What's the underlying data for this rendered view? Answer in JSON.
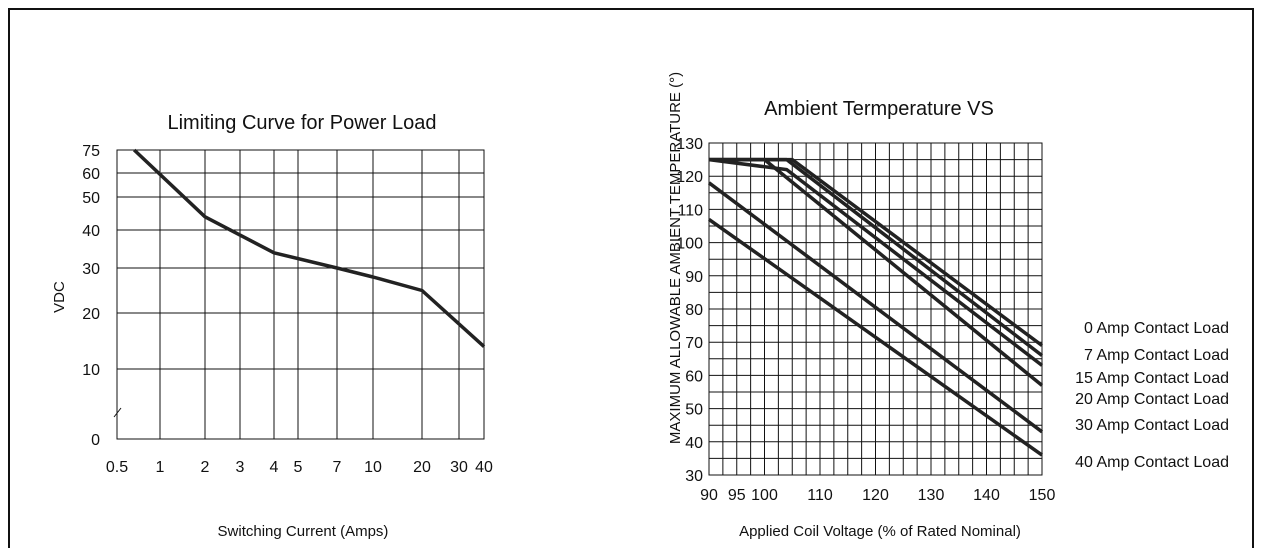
{
  "chart_data": [
    {
      "type": "line",
      "title": "Limiting Curve for Power Load",
      "xlabel": "Switching Current (Amps)",
      "ylabel": "VDC",
      "x_ticks": [
        "0.5",
        "1",
        "2",
        "3",
        "4",
        "5",
        "7",
        "10",
        "20",
        "30",
        "40"
      ],
      "y_ticks": [
        "0",
        "10",
        "20",
        "30",
        "40",
        "50",
        "60",
        "75"
      ],
      "grid": true,
      "series": [
        {
          "x": [
            0.7,
            2,
            4,
            7,
            10,
            20,
            40
          ],
          "y": [
            75,
            44,
            34,
            30,
            28,
            25,
            14
          ]
        }
      ]
    },
    {
      "type": "line",
      "title": "Ambient Termperature VS",
      "xlabel": "Applied Coil Voltage (% of Rated Nominal)",
      "ylabel": "MAXIMUM ALLOWABLE AMBIENT TEMPERATURE (°)",
      "x_ticks": [
        "90",
        "95",
        "100",
        "110",
        "120",
        "130",
        "140",
        "150"
      ],
      "y_ticks": [
        "30",
        "40",
        "50",
        "60",
        "70",
        "80",
        "90",
        "100",
        "110",
        "120",
        "130"
      ],
      "xlim": [
        90,
        150
      ],
      "ylim": [
        30,
        130
      ],
      "grid": true,
      "series": [
        {
          "name": "0 Amp Contact Load",
          "x": [
            90,
            105,
            150
          ],
          "y": [
            125,
            125,
            69
          ]
        },
        {
          "name": "7 Amp Contact Load",
          "x": [
            90,
            104,
            150
          ],
          "y": [
            125,
            125,
            66
          ]
        },
        {
          "name": "15 Amp Contact Load",
          "x": [
            90,
            104,
            150
          ],
          "y": [
            125,
            122,
            63
          ]
        },
        {
          "name": "20 Amp Contact Load",
          "x": [
            90,
            100,
            150
          ],
          "y": [
            125,
            125,
            57
          ]
        },
        {
          "name": "30 Amp Contact Load",
          "x": [
            90,
            150
          ],
          "y": [
            118,
            43
          ]
        },
        {
          "name": "40 Amp Contact Load",
          "x": [
            90,
            150
          ],
          "y": [
            107,
            36
          ]
        }
      ]
    }
  ]
}
